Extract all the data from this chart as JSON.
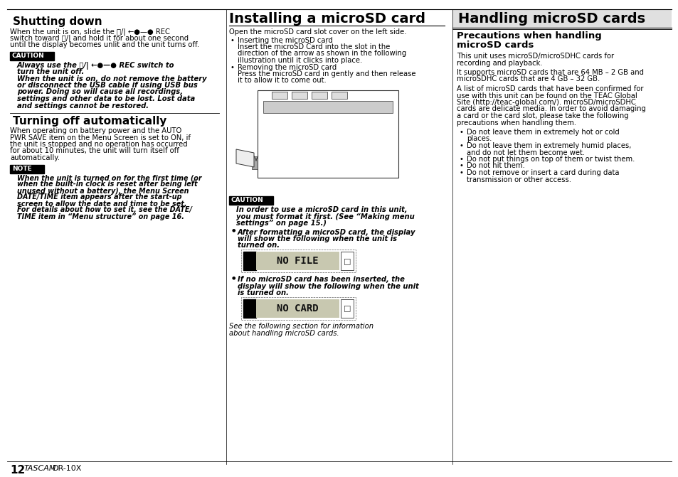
{
  "bg_color": "#ffffff",
  "text_color": "#000000",
  "page_num": "12",
  "brand": "TASCAM",
  "model": "DR-10X",
  "col1": {
    "section1_title": "Shutting down",
    "section1_body_lines": [
      "When the unit is on, slide the ⓨ/| ←●—● REC",
      "switch toward ⓨ/| and hold it for about one second",
      "until the display becomes unlit and the unit turns off."
    ],
    "caution_label": "CAUTION",
    "caution_lines": [
      "Always use the ⓨ/| ←●—● REC switch to",
      "turn the unit off.",
      "When the unit is on, do not remove the battery",
      "or disconnect the USB cable if using USB bus",
      "power. Doing so will cause all recordings,",
      "settings and other data to be lost. Lost data",
      "and settings cannot be restored."
    ],
    "section2_title": "Turning off automatically",
    "section2_body_lines": [
      "When operating on battery power and the AUTO",
      "PWR SAVE item on the Menu Screen is set to ON, if",
      "the unit is stopped and no operation has occurred",
      "for about 10 minutes, the unit will turn itself off",
      "automatically."
    ],
    "note_label": "NOTE",
    "note_lines": [
      "When the unit is turned on for the first time (or",
      "when the built-in clock is reset after being left",
      "unused without a battery), the Menu Screen",
      "DATE/TIME item appears after the start-up",
      "screen to allow the date and time to be set.",
      "For details about how to set it, see the DATE/",
      "TIME item in “Menu structure” on page 16."
    ]
  },
  "col2": {
    "section_title": "Installing a microSD card",
    "intro": "Open the microSD card slot cover on the left side.",
    "bullet1_head": "Inserting the microSD card",
    "bullet1_body": [
      "Insert the microSD Card into the slot in the",
      "direction of the arrow as shown in the following",
      "illustration until it clicks into place."
    ],
    "bullet2_head": "Removing the microSD card",
    "bullet2_body": [
      "Press the microSD card in gently and then release",
      "it to allow it to come out."
    ],
    "caution_label": "CAUTION",
    "caution_lines": [
      "In order to use a microSD card in this unit,",
      "you must format it first. (See “Making menu",
      "settings” on page 15.)"
    ],
    "bullet3_lines": [
      "After formatting a microSD card, the display",
      "will show the following when the unit is",
      "turned on."
    ],
    "display1": "■  NO FILE  □",
    "bullet4_lines": [
      "If no microSD card has been inserted, the",
      "display will show the following when the unit",
      "is turned on."
    ],
    "display2": "■  NO CARD  □",
    "footer_lines": [
      "See the following section for information",
      "about handling microSD cards."
    ]
  },
  "col3": {
    "section_title": "Handling microSD cards",
    "sub_title_lines": [
      "Precautions when handling",
      "microSD cards"
    ],
    "para1": [
      "This unit uses microSD/microSDHC cards for",
      "recording and playback."
    ],
    "para2": [
      "It supports microSD cards that are 64 MB – 2 GB and",
      "microSDHC cards that are 4 GB – 32 GB."
    ],
    "para3": [
      "A list of microSD cards that have been confirmed for",
      "use with this unit can be found on the TEAC Global",
      "Site (http://teac-global.com/). microSD/microSDHC",
      "cards are delicate media. In order to avoid damaging",
      "a card or the card slot, please take the following",
      "precautions when handling them."
    ],
    "bullets": [
      [
        "Do not leave them in extremely hot or cold",
        "places."
      ],
      [
        "Do not leave them in extremely humid places,",
        "and do not let them become wet."
      ],
      [
        "Do not put things on top of them or twist them."
      ],
      [
        "Do not hit them."
      ],
      [
        "Do not remove or insert a card during data",
        "transmission or other access."
      ]
    ]
  }
}
